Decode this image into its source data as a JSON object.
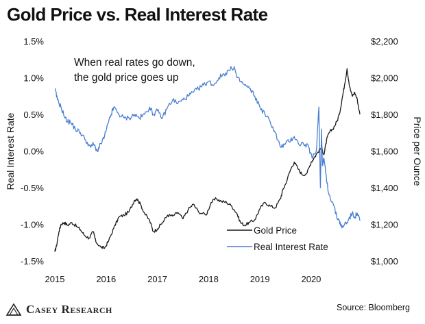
{
  "title": "Gold Price vs. Real Interest Rate",
  "brand": "Casey Research",
  "source": "Source: Bloomberg",
  "colors": {
    "gold": "#1a1a1a",
    "rate": "#4a7fcf"
  },
  "chart_data": {
    "type": "line",
    "title": "Gold Price vs. Real Interest Rate",
    "annotation": [
      "When real rates go down,",
      "the gold price goes up"
    ],
    "x_ticks": [
      "2015",
      "2016",
      "2017",
      "2018",
      "2019",
      "2020"
    ],
    "xlim": [
      2015.0,
      2020.95
    ],
    "y_left": {
      "label": "Real Interest Rate",
      "ticks": [
        "1.5%",
        "1.0%",
        "0.5%",
        "0.0%",
        "-0.5%",
        "-1.0%",
        "-1.5%"
      ],
      "lim": [
        -1.5,
        1.5
      ]
    },
    "y_right": {
      "label": "Price per Ounce",
      "ticks": [
        "$2,200",
        "$2,000",
        "$1,800",
        "$1,600",
        "$1,400",
        "$1,200",
        "$1,000"
      ],
      "lim": [
        1000,
        2200
      ]
    },
    "grid": false,
    "legend": {
      "position": "bottom-right"
    },
    "series": [
      {
        "name": "Gold Price",
        "axis": "right",
        "x": [
          2015.0,
          2015.03,
          2015.08,
          2015.12,
          2015.18,
          2015.25,
          2015.33,
          2015.42,
          2015.5,
          2015.58,
          2015.67,
          2015.75,
          2015.8,
          2015.9,
          2015.97,
          2016.05,
          2016.15,
          2016.25,
          2016.35,
          2016.45,
          2016.55,
          2016.6,
          2016.67,
          2016.75,
          2016.85,
          2016.92,
          2017.0,
          2017.1,
          2017.2,
          2017.3,
          2017.4,
          2017.5,
          2017.6,
          2017.7,
          2017.8,
          2017.95,
          2018.05,
          2018.15,
          2018.25,
          2018.35,
          2018.45,
          2018.55,
          2018.62,
          2018.7,
          2018.8,
          2018.9,
          2019.0,
          2019.1,
          2019.2,
          2019.3,
          2019.4,
          2019.45,
          2019.5,
          2019.6,
          2019.67,
          2019.75,
          2019.83,
          2019.92,
          2020.0,
          2020.05,
          2020.12,
          2020.2,
          2020.25,
          2020.3,
          2020.35,
          2020.42,
          2020.5,
          2020.55,
          2020.6,
          2020.65,
          2020.7,
          2020.75,
          2020.8,
          2020.85,
          2020.9,
          2020.95
        ],
        "values": [
          1050,
          1080,
          1160,
          1200,
          1210,
          1195,
          1210,
          1190,
          1170,
          1140,
          1125,
          1160,
          1105,
          1075,
          1070,
          1110,
          1180,
          1240,
          1250,
          1270,
          1330,
          1340,
          1310,
          1260,
          1220,
          1160,
          1175,
          1210,
          1250,
          1245,
          1265,
          1230,
          1280,
          1310,
          1270,
          1250,
          1320,
          1340,
          1325,
          1320,
          1300,
          1260,
          1210,
          1195,
          1210,
          1225,
          1285,
          1320,
          1300,
          1290,
          1340,
          1390,
          1420,
          1500,
          1540,
          1500,
          1470,
          1480,
          1540,
          1560,
          1590,
          1620,
          1580,
          1660,
          1700,
          1720,
          1760,
          1800,
          1880,
          1960,
          2050,
          1950,
          1900,
          1920,
          1880,
          1800
        ]
      },
      {
        "name": "Real Interest Rate",
        "axis": "left",
        "x": [
          2015.0,
          2015.05,
          2015.12,
          2015.2,
          2015.25,
          2015.3,
          2015.4,
          2015.5,
          2015.6,
          2015.7,
          2015.75,
          2015.83,
          2015.9,
          2015.97,
          2016.05,
          2016.1,
          2016.15,
          2016.25,
          2016.35,
          2016.45,
          2016.55,
          2016.65,
          2016.75,
          2016.85,
          2016.92,
          2017.0,
          2017.1,
          2017.2,
          2017.3,
          2017.4,
          2017.5,
          2017.6,
          2017.7,
          2017.8,
          2017.9,
          2018.0,
          2018.1,
          2018.2,
          2018.3,
          2018.4,
          2018.5,
          2018.55,
          2018.62,
          2018.7,
          2018.8,
          2018.9,
          2019.0,
          2019.1,
          2019.2,
          2019.3,
          2019.4,
          2019.5,
          2019.6,
          2019.67,
          2019.75,
          2019.85,
          2019.95,
          2020.02,
          2020.1,
          2020.15,
          2020.18,
          2020.2,
          2020.22,
          2020.25,
          2020.3,
          2020.35,
          2020.42,
          2020.5,
          2020.55,
          2020.6,
          2020.65,
          2020.72,
          2020.8,
          2020.85,
          2020.9,
          2020.95
        ],
        "values": [
          0.85,
          0.7,
          0.6,
          0.45,
          0.4,
          0.4,
          0.3,
          0.25,
          0.15,
          0.05,
          0.1,
          0.0,
          0.1,
          0.2,
          0.4,
          0.5,
          0.6,
          0.5,
          0.45,
          0.45,
          0.5,
          0.45,
          0.5,
          0.6,
          0.5,
          0.55,
          0.45,
          0.6,
          0.7,
          0.65,
          0.7,
          0.75,
          0.8,
          0.85,
          0.9,
          0.95,
          0.9,
          1.0,
          1.05,
          1.1,
          1.15,
          1.0,
          0.95,
          0.9,
          0.85,
          0.75,
          0.6,
          0.5,
          0.4,
          0.25,
          0.05,
          0.1,
          0.15,
          0.2,
          0.1,
          0.1,
          0.05,
          -0.1,
          0.0,
          0.6,
          -0.5,
          0.3,
          -0.2,
          -0.1,
          -0.4,
          -0.6,
          -0.7,
          -0.9,
          -0.95,
          -1.05,
          -1.0,
          -0.95,
          -0.85,
          -0.9,
          -0.85,
          -0.95
        ]
      }
    ]
  }
}
